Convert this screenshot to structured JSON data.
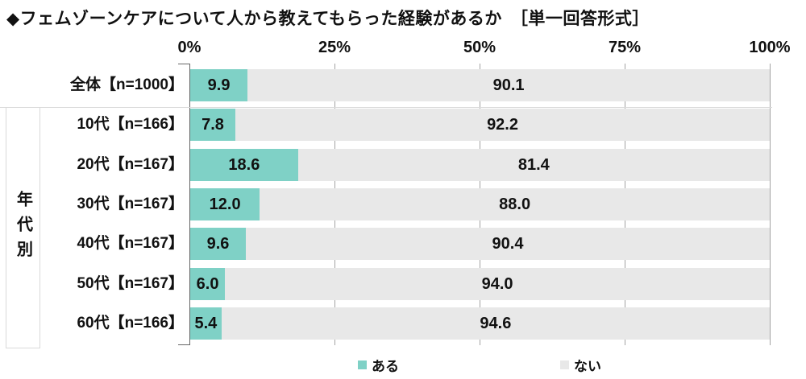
{
  "title": "◆フェムゾーンケアについて人から教えてもらった経験があるか　［単一回答形式］",
  "group_label": "年代別",
  "colors": {
    "aru": "#7fd1c6",
    "nai": "#e8e8e8",
    "gridline": "#a3a3a3",
    "axis": "#666666",
    "separator": "#d9d9d9",
    "text": "#111111"
  },
  "chart_data": {
    "type": "bar",
    "stacked": true,
    "orientation": "horizontal",
    "title": "◆フェムゾーンケアについて人から教えてもらった経験があるか　［単一回答形式］",
    "xlim": [
      0,
      100
    ],
    "x_tick_labels": [
      "0%",
      "25%",
      "50%",
      "75%",
      "100%"
    ],
    "x_tick_values": [
      0,
      25,
      50,
      75,
      100
    ],
    "grid": "vertical-ticks-in-gaps",
    "categories": [
      "全体【n=1000】",
      "10代【n=166】",
      "20代【n=167】",
      "30代【n=167】",
      "40代【n=167】",
      "50代【n=167】",
      "60代【n=166】"
    ],
    "group_label": "年代別",
    "group_span_rows": [
      1,
      6
    ],
    "series": [
      {
        "name": "ある",
        "color": "#7fd1c6",
        "values": [
          9.9,
          7.8,
          18.6,
          12.0,
          9.6,
          6.0,
          5.4
        ]
      },
      {
        "name": "ない",
        "color": "#e8e8e8",
        "values": [
          90.1,
          92.2,
          81.4,
          88.0,
          90.4,
          94.0,
          94.6
        ]
      }
    ],
    "legend": [
      "ある",
      "ない"
    ],
    "legend_position": "bottom"
  }
}
